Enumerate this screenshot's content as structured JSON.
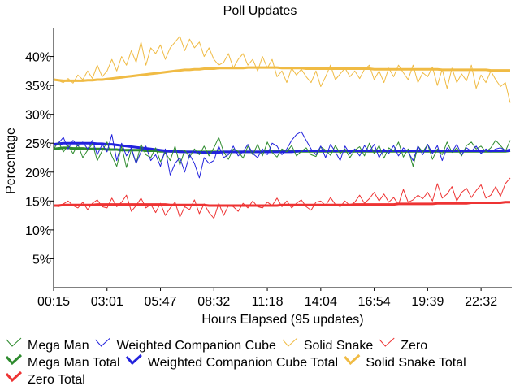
{
  "chart_data": {
    "type": "line",
    "title": "Poll Updates",
    "xlabel": "Hours Elapsed (95 updates)",
    "ylabel": "Percentage",
    "xlim": [
      0,
      94
    ],
    "ylim": [
      0,
      45
    ],
    "x_ticks": [
      {
        "i": 0,
        "label": "00:15"
      },
      {
        "i": 11,
        "label": "03:01"
      },
      {
        "i": 22,
        "label": "05:47"
      },
      {
        "i": 33,
        "label": "08:32"
      },
      {
        "i": 44,
        "label": "11:18"
      },
      {
        "i": 55,
        "label": "14:04"
      },
      {
        "i": 66,
        "label": "16:54"
      },
      {
        "i": 77,
        "label": "19:39"
      },
      {
        "i": 88,
        "label": "22:32"
      }
    ],
    "y_ticks": [
      {
        "v": 5,
        "label": "5%"
      },
      {
        "v": 10,
        "label": "10%"
      },
      {
        "v": 15,
        "label": "15%"
      },
      {
        "v": 20,
        "label": "20%"
      },
      {
        "v": 25,
        "label": "25%"
      },
      {
        "v": 30,
        "label": "30%"
      },
      {
        "v": 35,
        "label": "35%"
      },
      {
        "v": 40,
        "label": "40%"
      }
    ],
    "series": [
      {
        "name": "Mega Man",
        "color": "#2e8b2e",
        "width": 1,
        "values": [
          24.0,
          25.2,
          23.5,
          24.6,
          23.2,
          24.8,
          22.5,
          23.8,
          24.9,
          22.0,
          23.7,
          25.2,
          22.8,
          21.0,
          24.5,
          20.8,
          23.9,
          21.5,
          24.8,
          23.0,
          22.5,
          24.2,
          21.8,
          23.4,
          22.0,
          24.5,
          21.2,
          23.8,
          22.6,
          24.0,
          23.0,
          24.5,
          22.8,
          24.2,
          26.0,
          23.5,
          22.2,
          24.0,
          23.6,
          22.4,
          24.5,
          23.0,
          24.8,
          22.8,
          25.2,
          23.4,
          22.6,
          24.0,
          23.5,
          24.6,
          22.8,
          23.6,
          24.2,
          23.0,
          22.7,
          24.4,
          23.8,
          22.9,
          24.6,
          23.2,
          24.0,
          22.5,
          23.8,
          24.4,
          22.8,
          25.0,
          23.2,
          24.6,
          22.4,
          24.2,
          23.6,
          25.2,
          22.6,
          24.0,
          21.0,
          24.5,
          23.5,
          24.8,
          22.2,
          24.0,
          23.0,
          25.2,
          23.4,
          24.2,
          22.8,
          24.6,
          25.2,
          24.0,
          24.5,
          23.5,
          24.2,
          25.5,
          24.6,
          23.6,
          25.5
        ]
      },
      {
        "name": "Weighted Companion Cube",
        "color": "#2222dd",
        "width": 1,
        "values": [
          24.5,
          25.0,
          26.0,
          24.0,
          25.5,
          24.5,
          25.2,
          24.0,
          25.5,
          23.0,
          24.8,
          23.5,
          26.5,
          22.0,
          25.0,
          22.8,
          24.2,
          21.5,
          23.5,
          24.5,
          22.0,
          23.0,
          21.0,
          24.0,
          19.5,
          21.5,
          22.5,
          20.0,
          23.0,
          21.5,
          19.0,
          22.5,
          21.5,
          22.0,
          24.5,
          22.5,
          23.0,
          24.5,
          22.8,
          23.5,
          24.8,
          23.2,
          22.5,
          24.0,
          23.0,
          25.0,
          24.5,
          23.0,
          24.0,
          25.5,
          26.5,
          27.0,
          25.5,
          24.0,
          23.0,
          24.5,
          22.5,
          24.8,
          23.5,
          22.0,
          24.5,
          23.2,
          24.0,
          22.8,
          24.6,
          23.5,
          24.8,
          22.5,
          24.0,
          23.2,
          24.6,
          22.8,
          24.2,
          23.5,
          22.0,
          24.5,
          23.0,
          24.8,
          23.2,
          24.6,
          22.0,
          24.2,
          23.5,
          24.8,
          23.0,
          24.2,
          23.6,
          24.5,
          23.2,
          24.0,
          23.5,
          24.0,
          24.2,
          23.8,
          24.0
        ]
      },
      {
        "name": "Solid Snake",
        "color": "#f0bb44",
        "width": 1,
        "values": [
          36.2,
          35.8,
          35.5,
          36.2,
          35.4,
          36.8,
          36.0,
          37.5,
          36.2,
          38.5,
          36.5,
          37.5,
          39.5,
          37.5,
          40.0,
          38.5,
          41.0,
          39.0,
          42.5,
          38.5,
          41.5,
          40.5,
          42.0,
          39.5,
          41.5,
          42.5,
          43.5,
          41.0,
          43.0,
          41.5,
          42.5,
          40.0,
          41.5,
          39.5,
          38.5,
          39.0,
          40.5,
          38.0,
          39.5,
          40.5,
          38.5,
          39.5,
          37.5,
          40.0,
          38.0,
          39.5,
          36.5,
          37.5,
          35.5,
          38.0,
          36.8,
          37.8,
          36.5,
          35.5,
          37.5,
          34.8,
          36.5,
          38.5,
          36.0,
          37.0,
          38.0,
          36.5,
          37.5,
          36.2,
          37.8,
          38.5,
          36.0,
          37.5,
          35.5,
          38.0,
          36.5,
          38.5,
          37.2,
          36.0,
          38.5,
          35.5,
          37.2,
          36.5,
          38.2,
          35.0,
          37.8,
          34.5,
          38.0,
          35.5,
          37.0,
          35.8,
          38.5,
          34.5,
          36.8,
          35.5,
          37.5,
          36.0,
          34.8,
          35.5,
          32.0
        ]
      },
      {
        "name": "Zero",
        "color": "#ee3333",
        "width": 1,
        "values": [
          14.2,
          14.0,
          14.5,
          15.0,
          14.2,
          13.8,
          14.8,
          13.5,
          14.6,
          15.2,
          14.0,
          13.8,
          15.5,
          14.0,
          14.8,
          16.0,
          13.2,
          14.2,
          15.5,
          13.8,
          14.4,
          13.0,
          14.6,
          12.5,
          13.8,
          14.8,
          12.2,
          14.0,
          13.5,
          15.2,
          12.8,
          14.5,
          13.0,
          12.0,
          14.6,
          12.5,
          14.2,
          14.0,
          13.2,
          14.6,
          13.8,
          15.0,
          14.0,
          13.8,
          14.8,
          14.2,
          15.5,
          14.0,
          15.0,
          13.8,
          14.6,
          15.2,
          14.0,
          13.4,
          14.8,
          15.0,
          14.2,
          15.6,
          14.4,
          14.0,
          15.0,
          14.2,
          14.8,
          16.0,
          14.6,
          15.4,
          16.5,
          15.0,
          16.2,
          14.8,
          15.6,
          14.4,
          17.0,
          14.8,
          15.2,
          16.0,
          15.4,
          16.5,
          15.0,
          18.0,
          15.5,
          16.2,
          17.5,
          15.0,
          16.5,
          17.2,
          15.6,
          16.8,
          17.8,
          15.5,
          16.0,
          17.5,
          15.8,
          18.0,
          19.0
        ]
      },
      {
        "name": "Mega Man Total",
        "color": "#2e8b2e",
        "width": 3,
        "values": [
          24.0,
          24.1,
          24.2,
          24.2,
          24.1,
          24.1,
          24.1,
          24.0,
          24.0,
          24.0,
          24.0,
          23.9,
          23.9,
          23.9,
          23.8,
          23.8,
          23.8,
          23.8,
          23.8,
          23.7,
          23.7,
          23.7,
          23.6,
          23.6,
          23.6,
          23.6,
          23.6,
          23.5,
          23.5,
          23.5,
          23.5,
          23.5,
          23.5,
          23.5,
          23.5,
          23.5,
          23.5,
          23.5,
          23.5,
          23.5,
          23.5,
          23.5,
          23.5,
          23.5,
          23.6,
          23.6,
          23.6,
          23.6,
          23.6,
          23.6,
          23.6,
          23.6,
          23.6,
          23.6,
          23.6,
          23.6,
          23.6,
          23.6,
          23.6,
          23.6,
          23.6,
          23.6,
          23.6,
          23.6,
          23.6,
          23.6,
          23.6,
          23.6,
          23.6,
          23.6,
          23.6,
          23.6,
          23.6,
          23.6,
          23.6,
          23.6,
          23.6,
          23.6,
          23.6,
          23.6,
          23.6,
          23.6,
          23.6,
          23.6,
          23.6,
          23.6,
          23.6,
          23.6,
          23.6,
          23.6,
          23.6,
          23.6,
          23.6,
          23.6,
          23.7
        ]
      },
      {
        "name": "Weighted Companion Cube Total",
        "color": "#2222dd",
        "width": 3,
        "values": [
          24.8,
          24.9,
          25.0,
          25.0,
          25.0,
          25.0,
          25.0,
          25.0,
          25.0,
          24.9,
          24.9,
          24.8,
          24.8,
          24.7,
          24.6,
          24.5,
          24.4,
          24.3,
          24.2,
          24.1,
          24.0,
          23.9,
          23.8,
          23.7,
          23.6,
          23.6,
          23.5,
          23.5,
          23.5,
          23.5,
          23.4,
          23.4,
          23.4,
          23.4,
          23.4,
          23.5,
          23.5,
          23.5,
          23.5,
          23.5,
          23.5,
          23.5,
          23.5,
          23.5,
          23.5,
          23.5,
          23.5,
          23.5,
          23.5,
          23.5,
          23.6,
          23.7,
          23.7,
          23.7,
          23.7,
          23.7,
          23.7,
          23.7,
          23.7,
          23.7,
          23.7,
          23.7,
          23.7,
          23.7,
          23.7,
          23.7,
          23.7,
          23.7,
          23.7,
          23.7,
          23.7,
          23.7,
          23.7,
          23.7,
          23.7,
          23.7,
          23.7,
          23.7,
          23.7,
          23.7,
          23.7,
          23.7,
          23.7,
          23.7,
          23.7,
          23.7,
          23.7,
          23.7,
          23.7,
          23.7,
          23.7,
          23.7,
          23.7,
          23.7,
          23.7
        ]
      },
      {
        "name": "Solid Snake Total",
        "color": "#f0bb44",
        "width": 3,
        "values": [
          36.0,
          35.9,
          35.8,
          35.8,
          35.8,
          35.8,
          35.8,
          35.9,
          35.9,
          36.0,
          36.0,
          36.1,
          36.2,
          36.3,
          36.4,
          36.5,
          36.6,
          36.7,
          36.8,
          36.9,
          37.0,
          37.1,
          37.2,
          37.3,
          37.4,
          37.5,
          37.6,
          37.7,
          37.7,
          37.8,
          37.8,
          37.9,
          37.9,
          37.9,
          38.0,
          38.0,
          38.0,
          38.0,
          38.0,
          38.0,
          38.1,
          38.1,
          38.1,
          38.1,
          38.1,
          38.1,
          38.1,
          38.0,
          38.0,
          38.0,
          38.0,
          38.0,
          37.9,
          37.9,
          37.9,
          37.9,
          37.9,
          37.9,
          37.9,
          37.9,
          37.9,
          37.9,
          37.9,
          37.9,
          37.9,
          37.9,
          37.8,
          37.8,
          37.8,
          37.8,
          37.8,
          37.8,
          37.8,
          37.8,
          37.8,
          37.8,
          37.8,
          37.8,
          37.8,
          37.8,
          37.7,
          37.7,
          37.7,
          37.7,
          37.7,
          37.7,
          37.7,
          37.7,
          37.7,
          37.7,
          37.6,
          37.6,
          37.6,
          37.6,
          37.6
        ]
      },
      {
        "name": "Zero Total",
        "color": "#ee3333",
        "width": 3,
        "values": [
          14.2,
          14.2,
          14.3,
          14.3,
          14.3,
          14.3,
          14.3,
          14.3,
          14.3,
          14.4,
          14.4,
          14.4,
          14.4,
          14.4,
          14.4,
          14.4,
          14.4,
          14.4,
          14.4,
          14.4,
          14.4,
          14.4,
          14.4,
          14.4,
          14.3,
          14.3,
          14.3,
          14.3,
          14.3,
          14.3,
          14.3,
          14.3,
          14.2,
          14.2,
          14.2,
          14.2,
          14.2,
          14.2,
          14.2,
          14.2,
          14.2,
          14.2,
          14.2,
          14.2,
          14.2,
          14.2,
          14.2,
          14.3,
          14.3,
          14.3,
          14.3,
          14.3,
          14.3,
          14.3,
          14.3,
          14.3,
          14.3,
          14.3,
          14.3,
          14.3,
          14.3,
          14.3,
          14.4,
          14.4,
          14.4,
          14.4,
          14.4,
          14.4,
          14.4,
          14.4,
          14.4,
          14.5,
          14.5,
          14.5,
          14.5,
          14.5,
          14.5,
          14.5,
          14.5,
          14.6,
          14.6,
          14.6,
          14.6,
          14.6,
          14.6,
          14.6,
          14.7,
          14.7,
          14.7,
          14.7,
          14.7,
          14.7,
          14.7,
          14.8,
          14.8
        ]
      }
    ],
    "legend": {
      "placement": "bottom",
      "rows": [
        [
          "Mega Man",
          "Weighted Companion Cube",
          "Solid Snake",
          "Zero"
        ],
        [
          "Mega Man Total",
          "Weighted Companion Cube Total",
          "Solid Snake Total"
        ],
        [
          "Zero Total"
        ]
      ]
    }
  }
}
